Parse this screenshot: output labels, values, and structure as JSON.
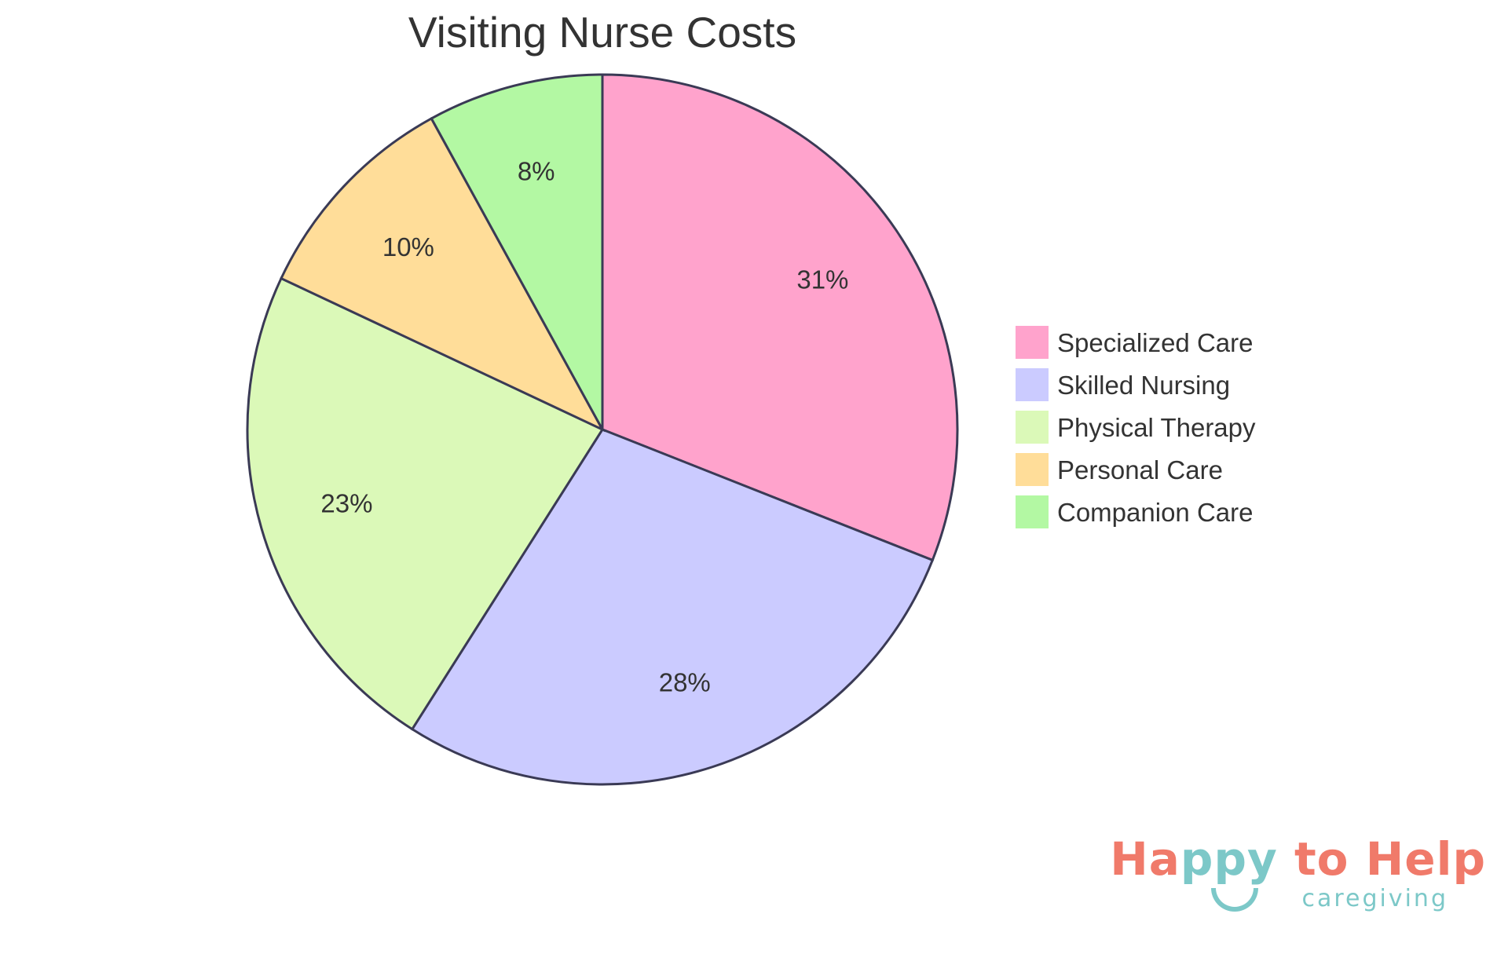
{
  "chart_data": {
    "type": "pie",
    "title": "Visiting Nurse Costs",
    "legend_position": "right",
    "slices": [
      {
        "label": "Specialized Care",
        "value": 31,
        "display": "31%",
        "color": "#ffa3cc"
      },
      {
        "label": "Skilled Nursing",
        "value": 28,
        "display": "28%",
        "color": "#cbcbff"
      },
      {
        "label": "Physical Therapy",
        "value": 23,
        "display": "23%",
        "color": "#dbf9b8"
      },
      {
        "label": "Personal Care",
        "value": 10,
        "display": "10%",
        "color": "#ffdd99"
      },
      {
        "label": "Companion Care",
        "value": 8,
        "display": "8%",
        "color": "#b3f8a3"
      }
    ]
  },
  "logo": {
    "word1": "Ha",
    "word2": "ppy",
    "word3": " to Help",
    "tagline": "caregiving",
    "colors": {
      "coral": "#f07a6a",
      "teal": "#7cc8c8"
    }
  }
}
